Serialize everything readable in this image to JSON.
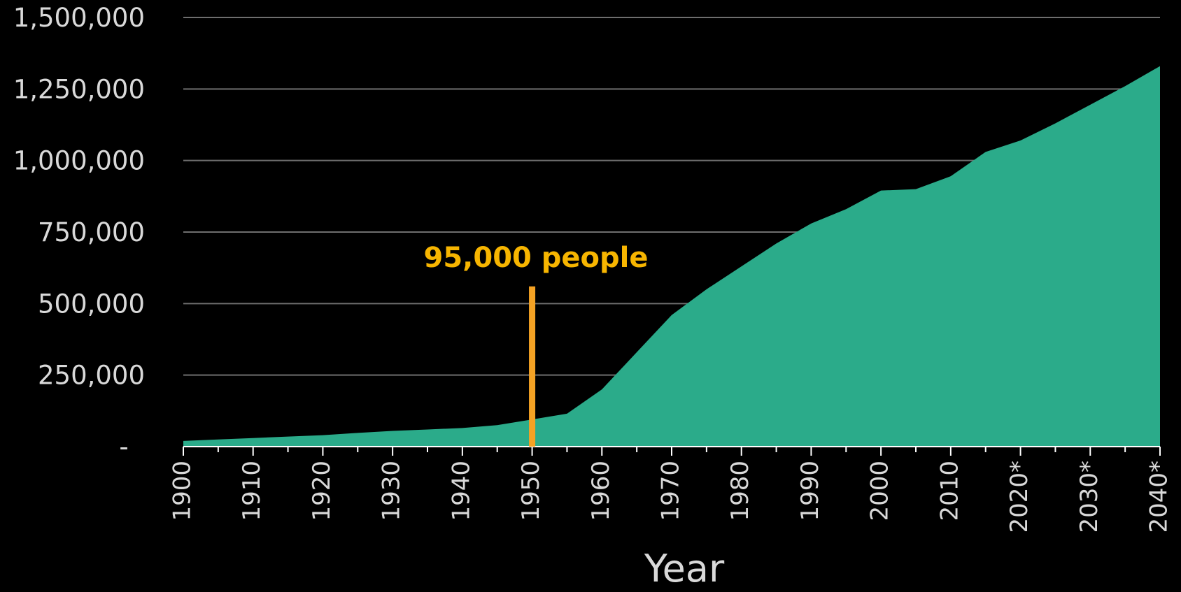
{
  "chart_data": {
    "type": "area",
    "title": "",
    "xlabel": "Year",
    "ylabel": "",
    "ylim": [
      0,
      1500000
    ],
    "xlim": [
      1900,
      2040
    ],
    "grid": true,
    "y_ticks": [
      {
        "value": 0,
        "label": "-"
      },
      {
        "value": 250000,
        "label": "250,000"
      },
      {
        "value": 500000,
        "label": "500,000"
      },
      {
        "value": 750000,
        "label": "750,000"
      },
      {
        "value": 1000000,
        "label": "1,000,000"
      },
      {
        "value": 1250000,
        "label": "1,250,000"
      },
      {
        "value": 1500000,
        "label": "1,500,000"
      }
    ],
    "x_ticks": [
      {
        "value": 1900,
        "label": "1900"
      },
      {
        "value": 1910,
        "label": "1910"
      },
      {
        "value": 1920,
        "label": "1920"
      },
      {
        "value": 1930,
        "label": "1930"
      },
      {
        "value": 1940,
        "label": "1940"
      },
      {
        "value": 1950,
        "label": "1950"
      },
      {
        "value": 1960,
        "label": "1960"
      },
      {
        "value": 1970,
        "label": "1970"
      },
      {
        "value": 1980,
        "label": "1980"
      },
      {
        "value": 1990,
        "label": "1990"
      },
      {
        "value": 2000,
        "label": "2000"
      },
      {
        "value": 2010,
        "label": "2010"
      },
      {
        "value": 2020,
        "label": "2020*"
      },
      {
        "value": 2030,
        "label": "2030*"
      },
      {
        "value": 2040,
        "label": "2040*"
      }
    ],
    "series": [
      {
        "color": "#2bab8a",
        "x": [
          1900,
          1905,
          1910,
          1915,
          1920,
          1925,
          1930,
          1935,
          1940,
          1945,
          1950,
          1955,
          1960,
          1965,
          1970,
          1975,
          1980,
          1985,
          1990,
          1995,
          2000,
          2005,
          2010,
          2015,
          2020,
          2025,
          2030,
          2035,
          2040
        ],
        "values": [
          20000,
          25000,
          30000,
          35000,
          40000,
          48000,
          55000,
          60000,
          65000,
          75000,
          95000,
          115000,
          200000,
          330000,
          460000,
          550000,
          630000,
          710000,
          780000,
          830000,
          895000,
          900000,
          945000,
          1030000,
          1070000,
          1130000,
          1195000,
          1260000,
          1330000
        ]
      }
    ],
    "annotations": [
      {
        "text": "95,000 people",
        "x": 1950,
        "y_top": 560000,
        "y_bottom": 0,
        "color": "#f4a224",
        "text_color": "#f7b500"
      }
    ],
    "axis_color": "#ffffff",
    "grid_color": "#6e6e6e"
  }
}
